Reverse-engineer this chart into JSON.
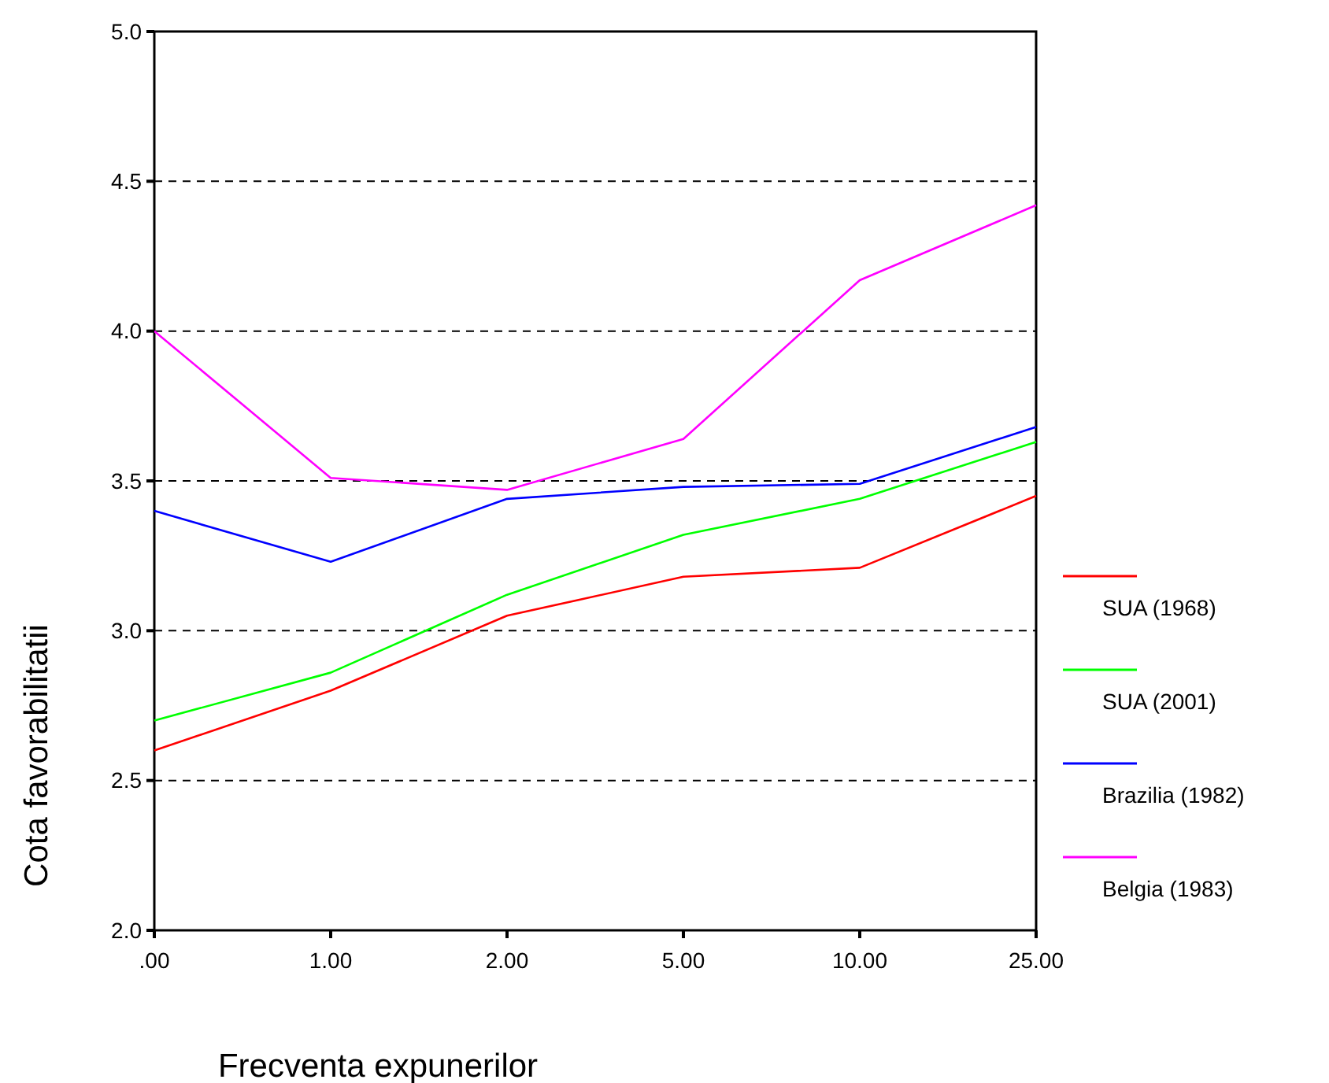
{
  "chart_data": {
    "type": "line",
    "xlabel": "Frecventa expunerilor",
    "ylabel": "Cota favorabilitatii",
    "categories": [
      ".00",
      "1.00",
      "2.00",
      "5.00",
      "10.00",
      "25.00"
    ],
    "series": [
      {
        "name": "SUA (1968)",
        "color": "#ff0000",
        "values": [
          2.6,
          2.8,
          3.05,
          3.18,
          3.21,
          3.45
        ]
      },
      {
        "name": "SUA (2001)",
        "color": "#00ff00",
        "values": [
          2.7,
          2.86,
          3.12,
          3.32,
          3.44,
          3.63
        ]
      },
      {
        "name": "Brazilia (1982)",
        "color": "#0000ff",
        "values": [
          3.4,
          3.23,
          3.44,
          3.48,
          3.49,
          3.68
        ]
      },
      {
        "name": "Belgia (1983)",
        "color": "#ff00ff",
        "values": [
          4.0,
          3.51,
          3.47,
          3.64,
          4.17,
          4.42
        ]
      }
    ],
    "ylim": [
      2,
      5
    ],
    "yticks": [
      {
        "value": 2,
        "label": "2.0"
      },
      {
        "value": 2.5,
        "label": "2.5"
      },
      {
        "value": 3,
        "label": "3.0"
      },
      {
        "value": 3.5,
        "label": "3.5"
      },
      {
        "value": 4,
        "label": "4.0"
      },
      {
        "value": 4.5,
        "label": "4.5"
      },
      {
        "value": 5,
        "label": "5.0"
      }
    ],
    "grid": "y",
    "legend": "right",
    "marker": "none",
    "line_style": "solid"
  }
}
